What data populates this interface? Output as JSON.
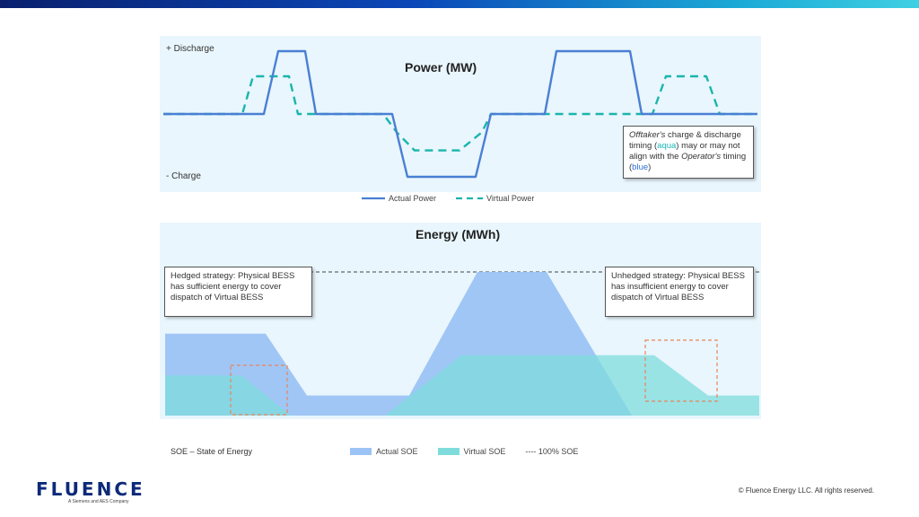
{
  "header_bar": {
    "colors": [
      "#0a1f6e",
      "#0b47b8",
      "#1aa9d6",
      "#3fd0e3"
    ]
  },
  "power_chart": {
    "title": "Power (MW)",
    "y_top_label": "+ Discharge",
    "y_bottom_label": "- Charge",
    "note": {
      "part1": "Offtaker's",
      "part2": " charge & discharge timing (",
      "aqua_word": "aqua",
      "part3": ") may or may not align with the ",
      "part4": "Operator's",
      "part5": " timing (",
      "blue_word": "blue",
      "part6": ")"
    },
    "legend": {
      "actual": "Actual Power",
      "virtual": "Virtual Power"
    }
  },
  "energy_chart": {
    "title": "Energy (MWh)",
    "hedged_note": "Hedged strategy: Physical BESS has sufficient energy to cover dispatch of Virtual BESS",
    "unhedged_note": "Unhedged strategy: Physical BESS has insufficient energy to cover dispatch of Virtual BESS",
    "legend": {
      "soe_def": "SOE – State of Energy",
      "actual": "Actual SOE",
      "virtual": "Virtual SOE",
      "full": "---- 100% SOE"
    }
  },
  "chart_data": [
    {
      "type": "line",
      "title": "Power (MW)",
      "series": [
        {
          "name": "Actual Power",
          "color": "#4a7fd4",
          "style": "solid",
          "points": [
            [
              0,
              0
            ],
            [
              112,
              0
            ],
            [
              128,
              1
            ],
            [
              158,
              1
            ],
            [
              170,
              0
            ],
            [
              255,
              0
            ],
            [
              272,
              -1
            ],
            [
              348,
              -1
            ],
            [
              365,
              0
            ],
            [
              425,
              0
            ],
            [
              438,
              1
            ],
            [
              520,
              1
            ],
            [
              533,
              0
            ],
            [
              662,
              0
            ]
          ]
        },
        {
          "name": "Virtual Power",
          "color": "#1ab5ac",
          "style": "dashed",
          "points": [
            [
              0,
              0
            ],
            [
              88,
              0
            ],
            [
              100,
              0.6
            ],
            [
              140,
              0.6
            ],
            [
              150,
              0
            ],
            [
              245,
              0
            ],
            [
              260,
              -0.29
            ],
            [
              280,
              -0.58
            ],
            [
              330,
              -0.58
            ],
            [
              355,
              -0.29
            ],
            [
              365,
              0
            ],
            [
              545,
              0
            ],
            [
              560,
              0.6
            ],
            [
              605,
              0.6
            ],
            [
              620,
              0
            ],
            [
              662,
              0
            ]
          ]
        }
      ]
    },
    {
      "type": "area",
      "title": "Energy (MWh)",
      "full_soe_level": 1,
      "series": [
        {
          "name": "Actual SOE",
          "color": "#9cc3f5",
          "points": [
            [
              0,
              0.57
            ],
            [
              112,
              0.57
            ],
            [
              158,
              0.14
            ],
            [
              272,
              0.14
            ],
            [
              348,
              1
            ],
            [
              425,
              1
            ],
            [
              520,
              0
            ],
            [
              662,
              0
            ]
          ]
        },
        {
          "name": "Virtual SOE",
          "color": "#7edcdc",
          "points": [
            [
              0,
              0.28
            ],
            [
              85,
              0.28
            ],
            [
              140,
              0
            ],
            [
              245,
              0
            ],
            [
              330,
              0.42
            ],
            [
              345,
              0.42
            ],
            [
              545,
              0.42
            ],
            [
              605,
              0.14
            ],
            [
              662,
              0.14
            ]
          ]
        }
      ]
    }
  ],
  "footer": {
    "logo_text": "FLUENCE",
    "logo_sub": "A Siemens and AES Company",
    "copyright": "© Fluence Energy LLC. All rights reserved."
  }
}
